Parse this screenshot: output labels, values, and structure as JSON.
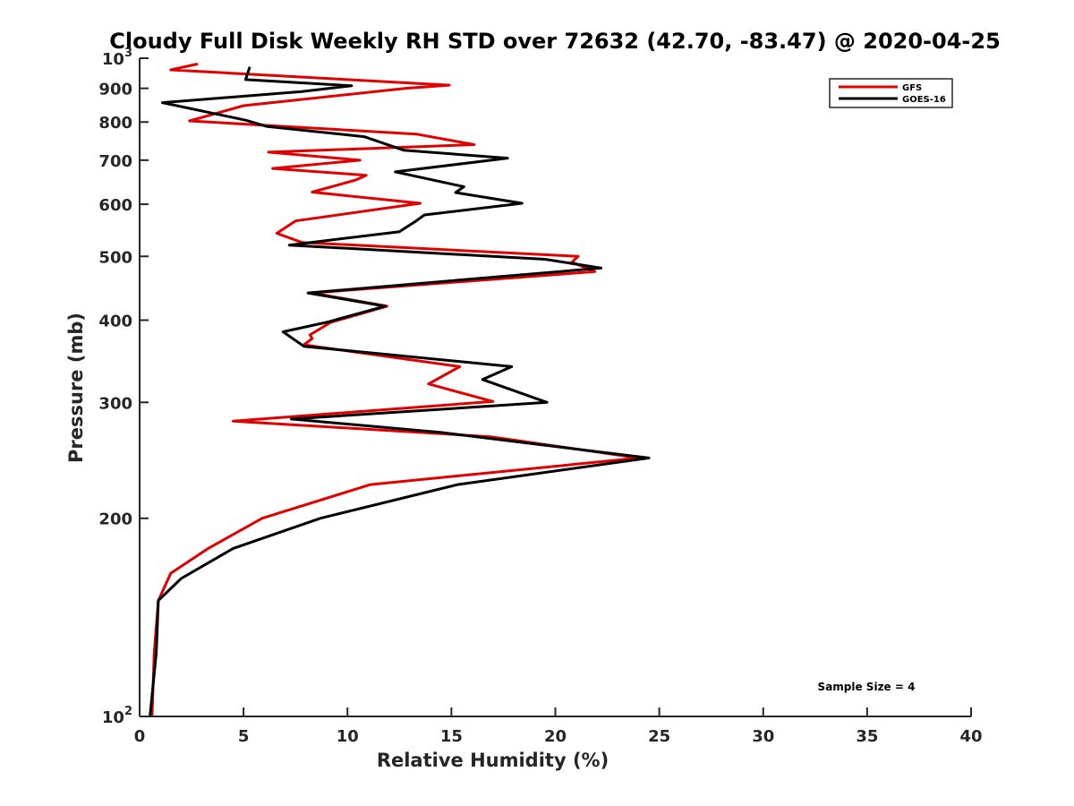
{
  "chart_data": {
    "type": "line",
    "title": "Cloudy Full Disk Weekly RH STD over 72632 (42.70, -83.47) @ 2020-04-25",
    "xlabel": "Relative Humidity (%)",
    "ylabel": "Pressure (mb)",
    "xlim": [
      0,
      40
    ],
    "ylim": [
      1000,
      100
    ],
    "y_scale": "log",
    "grid": false,
    "legend_placement": "top-right",
    "x_ticks": [
      "0",
      "5",
      "10",
      "15",
      "20",
      "25",
      "30",
      "35",
      "40"
    ],
    "y_ticks": [
      {
        "value": 100,
        "base": "10",
        "exp": "2"
      },
      {
        "value": 200,
        "label": "200"
      },
      {
        "value": 300,
        "label": "300"
      },
      {
        "value": 400,
        "label": "400"
      },
      {
        "value": 500,
        "label": "500"
      },
      {
        "value": 600,
        "label": "600"
      },
      {
        "value": 700,
        "label": "700"
      },
      {
        "value": 800,
        "label": "800"
      },
      {
        "value": 900,
        "label": "900"
      },
      {
        "value": 1000,
        "base": "10",
        "exp": "3"
      }
    ],
    "series": [
      {
        "name": "GFS",
        "color": "#e00000",
        "points": [
          [
            0.6,
            100
          ],
          [
            0.7,
            125
          ],
          [
            0.9,
            150
          ],
          [
            1.5,
            165
          ],
          [
            3.3,
            180
          ],
          [
            5.9,
            200
          ],
          [
            11.1,
            225
          ],
          [
            24.0,
            247
          ],
          [
            16.9,
            266
          ],
          [
            4.5,
            281
          ],
          [
            17.0,
            301
          ],
          [
            13.9,
            320
          ],
          [
            15.4,
            340
          ],
          [
            7.9,
            367
          ],
          [
            8.3,
            375
          ],
          [
            8.2,
            380
          ],
          [
            9.2,
            397
          ],
          [
            11.9,
            420
          ],
          [
            8.3,
            440
          ],
          [
            21.9,
            474
          ],
          [
            20.8,
            490
          ],
          [
            21.1,
            500
          ],
          [
            7.8,
            525
          ],
          [
            6.6,
            542
          ],
          [
            7.5,
            566
          ],
          [
            13.5,
            602
          ],
          [
            8.3,
            626
          ],
          [
            10.4,
            653
          ],
          [
            10.9,
            664
          ],
          [
            6.4,
            680
          ],
          [
            10.6,
            700
          ],
          [
            6.2,
            720
          ],
          [
            16.1,
            739
          ],
          [
            13.3,
            767
          ],
          [
            2.4,
            803
          ],
          [
            5.0,
            847
          ],
          [
            12.8,
            900
          ],
          [
            14.9,
            910
          ],
          [
            1.5,
            960
          ],
          [
            2.8,
            980
          ]
        ]
      },
      {
        "name": "GOES-16",
        "color": "#000000",
        "points": [
          [
            0.5,
            100
          ],
          [
            0.8,
            125
          ],
          [
            0.9,
            150
          ],
          [
            2.0,
            162
          ],
          [
            4.5,
            180
          ],
          [
            8.7,
            200
          ],
          [
            15.3,
            225
          ],
          [
            24.5,
            247
          ],
          [
            14.5,
            270
          ],
          [
            7.3,
            283
          ],
          [
            19.6,
            300
          ],
          [
            16.5,
            325
          ],
          [
            17.9,
            340
          ],
          [
            7.9,
            365
          ],
          [
            6.9,
            384
          ],
          [
            9.0,
            397
          ],
          [
            11.8,
            420
          ],
          [
            8.1,
            440
          ],
          [
            22.2,
            480
          ],
          [
            19.5,
            495
          ],
          [
            7.2,
            520
          ],
          [
            12.5,
            545
          ],
          [
            13.3,
            566
          ],
          [
            13.7,
            578
          ],
          [
            18.4,
            602
          ],
          [
            15.2,
            625
          ],
          [
            15.6,
            638
          ],
          [
            12.3,
            672
          ],
          [
            17.7,
            705
          ],
          [
            12.7,
            725
          ],
          [
            10.8,
            760
          ],
          [
            6.1,
            788
          ],
          [
            5.1,
            805
          ],
          [
            1.1,
            856
          ],
          [
            7.8,
            890
          ],
          [
            10.2,
            908
          ],
          [
            5.1,
            928
          ],
          [
            5.3,
            970
          ]
        ]
      }
    ],
    "annotation": "Sample Size = 4"
  }
}
